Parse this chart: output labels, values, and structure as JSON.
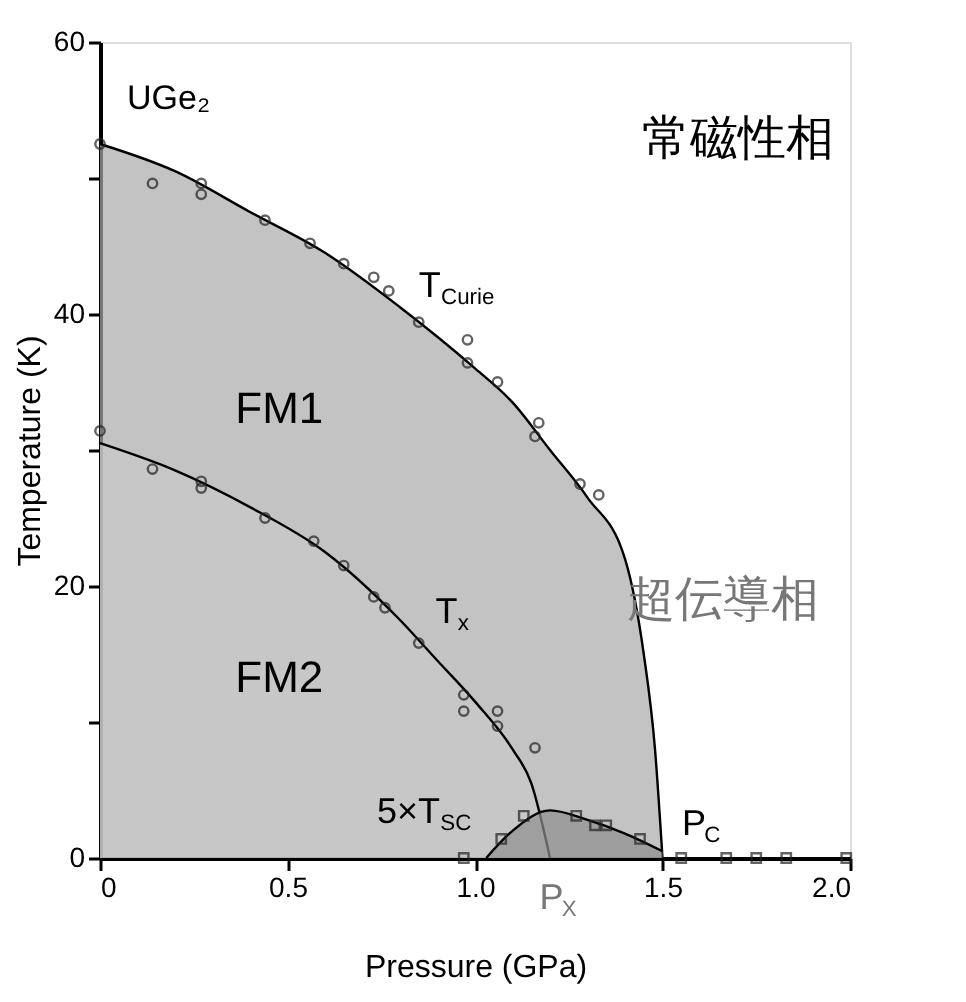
{
  "chart_data": {
    "type": "scatter",
    "xlabel": "Pressure (GPa)",
    "ylabel": "Temperature (K)",
    "xlim": [
      0,
      2
    ],
    "ylim": [
      0,
      60
    ],
    "xticks": [
      0,
      0.5,
      {
        "value": 1,
        "label": "1.0"
      },
      1.5,
      {
        "value": 2,
        "label": "2.0"
      }
    ],
    "yticks": [
      0,
      {
        "value": 10,
        "label": null
      },
      20,
      {
        "value": 30,
        "label": null
      },
      40,
      {
        "value": 50,
        "label": null
      },
      60
    ],
    "grid": false,
    "series": [
      {
        "type": "area",
        "color": "#a9a9a9",
        "x": [
          0,
          0.2,
          0.4,
          0.6,
          0.8,
          1.0,
          1.1,
          1.2,
          1.3,
          1.4,
          1.45,
          1.48,
          1.5
        ],
        "values": [
          52.5,
          50.5,
          47.5,
          44.5,
          40.5,
          36,
          33.5,
          30,
          26.5,
          22,
          15,
          8,
          0
        ]
      },
      {
        "type": "area",
        "color": "#c9c9c9",
        "x": [
          0,
          0.2,
          0.4,
          0.6,
          0.8,
          0.9,
          1.0,
          1.1,
          1.15,
          1.2
        ],
        "values": [
          30.5,
          28.5,
          25.8,
          22.5,
          17.5,
          14.5,
          11.5,
          8,
          5.5,
          0
        ]
      },
      {
        "type": "area",
        "color": "#8f8f8f",
        "x": [
          1.03,
          1.1,
          1.2,
          1.3,
          1.4,
          1.5
        ],
        "values": [
          0,
          2,
          3.5,
          2.8,
          1.8,
          0.5
        ]
      },
      {
        "marker": "circle",
        "color": "#222222",
        "x": [
          0,
          0.14,
          0.27,
          0.27,
          0.44,
          0.56,
          0.65,
          0.73,
          0.77,
          0.85,
          0.98,
          0.98,
          1.06,
          1.17,
          1.16,
          1.28,
          1.33
        ],
        "values": [
          52.5,
          49.6,
          49.6,
          48.8,
          46.9,
          45.2,
          43.7,
          42.7,
          41.7,
          39.4,
          38.1,
          36.4,
          35,
          32,
          31,
          27.5,
          26.7
        ]
      },
      {
        "marker": "circle",
        "color": "#222222",
        "x": [
          0,
          0.14,
          0.27,
          0.27,
          0.44,
          0.57,
          0.65,
          0.73,
          0.76,
          0.85,
          0.97,
          0.97,
          1.06,
          1.06,
          1.16
        ],
        "values": [
          31.4,
          28.6,
          27.7,
          27.2,
          25,
          23.3,
          21.5,
          19.2,
          18.4,
          15.8,
          12,
          10.8,
          10.8,
          9.7,
          8.1
        ]
      },
      {
        "marker": "square",
        "color": "#222222",
        "x": [
          0.97,
          1.07,
          1.13,
          1.27,
          1.32,
          1.35,
          1.44,
          1.55,
          1.67,
          1.75,
          1.83,
          1.99
        ],
        "values": [
          0,
          1.4,
          3.1,
          3.1,
          2.4,
          2.4,
          1.4,
          0,
          0,
          0,
          0,
          0
        ]
      }
    ],
    "annotations": [
      "UGe₂",
      "常磁性相",
      "T$_{Curie}$",
      "FM1",
      "T$_{x}$",
      "FM2",
      "5×T$_{SC}$",
      "P$_{C}$",
      "P$_{X}$",
      "超伝導相"
    ]
  }
}
